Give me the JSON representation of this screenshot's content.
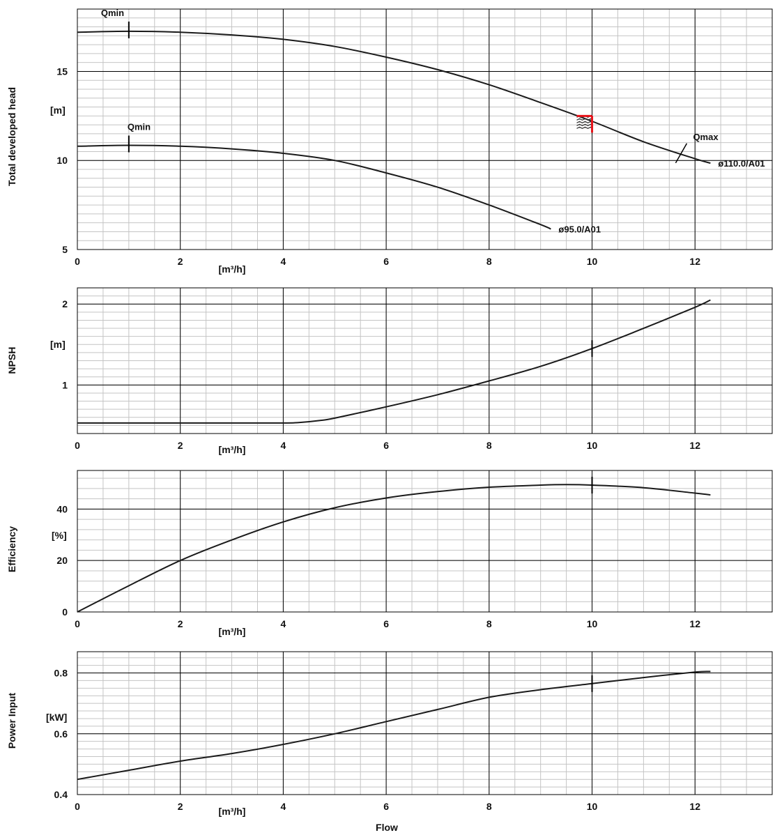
{
  "colors": {
    "grid_minor": "#c4c4c4",
    "grid_major": "#000000",
    "curve": "#1a1a1a",
    "duty_point": "#e8141b"
  },
  "footer": {
    "xlabel": "Flow"
  },
  "chart_data": [
    {
      "type": "line",
      "ylabel": "Total developed head",
      "yunit": "[m]",
      "xunit": "[m³/h]",
      "xlim": [
        0,
        13.5
      ],
      "ylim": [
        5,
        18.5
      ],
      "xticks": [
        0,
        2,
        4,
        6,
        8,
        10,
        12
      ],
      "xtick_labels": [
        "0",
        "2",
        "4",
        "6",
        "8",
        "10",
        "12"
      ],
      "yticks": [
        5,
        10,
        15
      ],
      "ytick_labels": [
        "5",
        "10",
        "15"
      ],
      "series": [
        {
          "name": "ø110.0/A01",
          "x": [
            0,
            1,
            2,
            3,
            4,
            5,
            6,
            7,
            8,
            9,
            10,
            11,
            12,
            12.3
          ],
          "y": [
            17.2,
            17.25,
            17.2,
            17.05,
            16.8,
            16.4,
            15.8,
            15.1,
            14.25,
            13.25,
            12.2,
            11.05,
            10.1,
            9.85
          ]
        },
        {
          "name": "ø95.0/A01",
          "x": [
            0,
            1,
            2,
            3,
            4,
            5,
            6,
            7,
            8,
            9,
            9.2
          ],
          "y": [
            10.8,
            10.85,
            10.8,
            10.65,
            10.4,
            10.0,
            9.3,
            8.5,
            7.5,
            6.4,
            6.15
          ]
        }
      ],
      "annotations": [
        {
          "text": "Qmin",
          "x": 1.0,
          "y": 17.25
        },
        {
          "text": "Qmin",
          "x": 1.0,
          "y": 10.85
        },
        {
          "text": "Qmax",
          "x": 11.8,
          "y": 10.8
        }
      ],
      "duty_point": {
        "x": 10.0,
        "y": 12.5
      }
    },
    {
      "type": "line",
      "ylabel": "NPSH",
      "yunit": "[m]",
      "xunit": "[m³/h]",
      "xlim": [
        0,
        13.5
      ],
      "ylim": [
        0.4,
        2.2
      ],
      "xticks": [
        0,
        2,
        4,
        6,
        8,
        10,
        12
      ],
      "xtick_labels": [
        "0",
        "2",
        "4",
        "6",
        "8",
        "10",
        "12"
      ],
      "yticks": [
        1,
        2
      ],
      "ytick_labels": [
        "1",
        "2"
      ],
      "series": [
        {
          "x": [
            0,
            1,
            2,
            3,
            4,
            4.3,
            4.7,
            5,
            6,
            7,
            8,
            9,
            10,
            11,
            12,
            12.3
          ],
          "y": [
            0.53,
            0.53,
            0.53,
            0.53,
            0.53,
            0.535,
            0.56,
            0.59,
            0.73,
            0.88,
            1.05,
            1.23,
            1.45,
            1.7,
            1.96,
            2.05
          ]
        }
      ],
      "markers": [
        {
          "x": 10.0
        }
      ]
    },
    {
      "type": "line",
      "ylabel": "Efficiency",
      "yunit": "[%]",
      "xunit": "[m³/h]",
      "xlim": [
        0,
        13.5
      ],
      "ylim": [
        0,
        55
      ],
      "xticks": [
        0,
        2,
        4,
        6,
        8,
        10,
        12
      ],
      "xtick_labels": [
        "0",
        "2",
        "4",
        "6",
        "8",
        "10",
        "12"
      ],
      "yticks": [
        0,
        20,
        40
      ],
      "ytick_labels": [
        "0",
        "20",
        "40"
      ],
      "series": [
        {
          "x": [
            0,
            1,
            2,
            3,
            4,
            5,
            6,
            7,
            8,
            9,
            9.5,
            10,
            11,
            12,
            12.3
          ],
          "y": [
            0,
            10.2,
            20,
            28,
            35,
            40.5,
            44.3,
            46.8,
            48.5,
            49.3,
            49.5,
            49.3,
            48.3,
            46.2,
            45.5
          ]
        }
      ],
      "markers": [
        {
          "x": 10.0
        }
      ]
    },
    {
      "type": "line",
      "ylabel": "Power Input",
      "yunit": "[kW]",
      "xunit": "[m³/h]",
      "xlim": [
        0,
        13.5
      ],
      "ylim": [
        0.4,
        0.87
      ],
      "xticks": [
        0,
        2,
        4,
        6,
        8,
        10,
        12
      ],
      "xtick_labels": [
        "0",
        "2",
        "4",
        "6",
        "8",
        "10",
        "12"
      ],
      "yticks": [
        0.4,
        0.6,
        0.8
      ],
      "ytick_labels": [
        "0.4",
        "0.6",
        "0.8"
      ],
      "series": [
        {
          "x": [
            0,
            1,
            2,
            3,
            4,
            5,
            6,
            7,
            8,
            9,
            10,
            11,
            12,
            12.3
          ],
          "y": [
            0.45,
            0.48,
            0.51,
            0.535,
            0.565,
            0.6,
            0.64,
            0.68,
            0.72,
            0.745,
            0.765,
            0.785,
            0.803,
            0.805
          ]
        }
      ],
      "markers": [
        {
          "x": 10.0
        }
      ]
    }
  ]
}
